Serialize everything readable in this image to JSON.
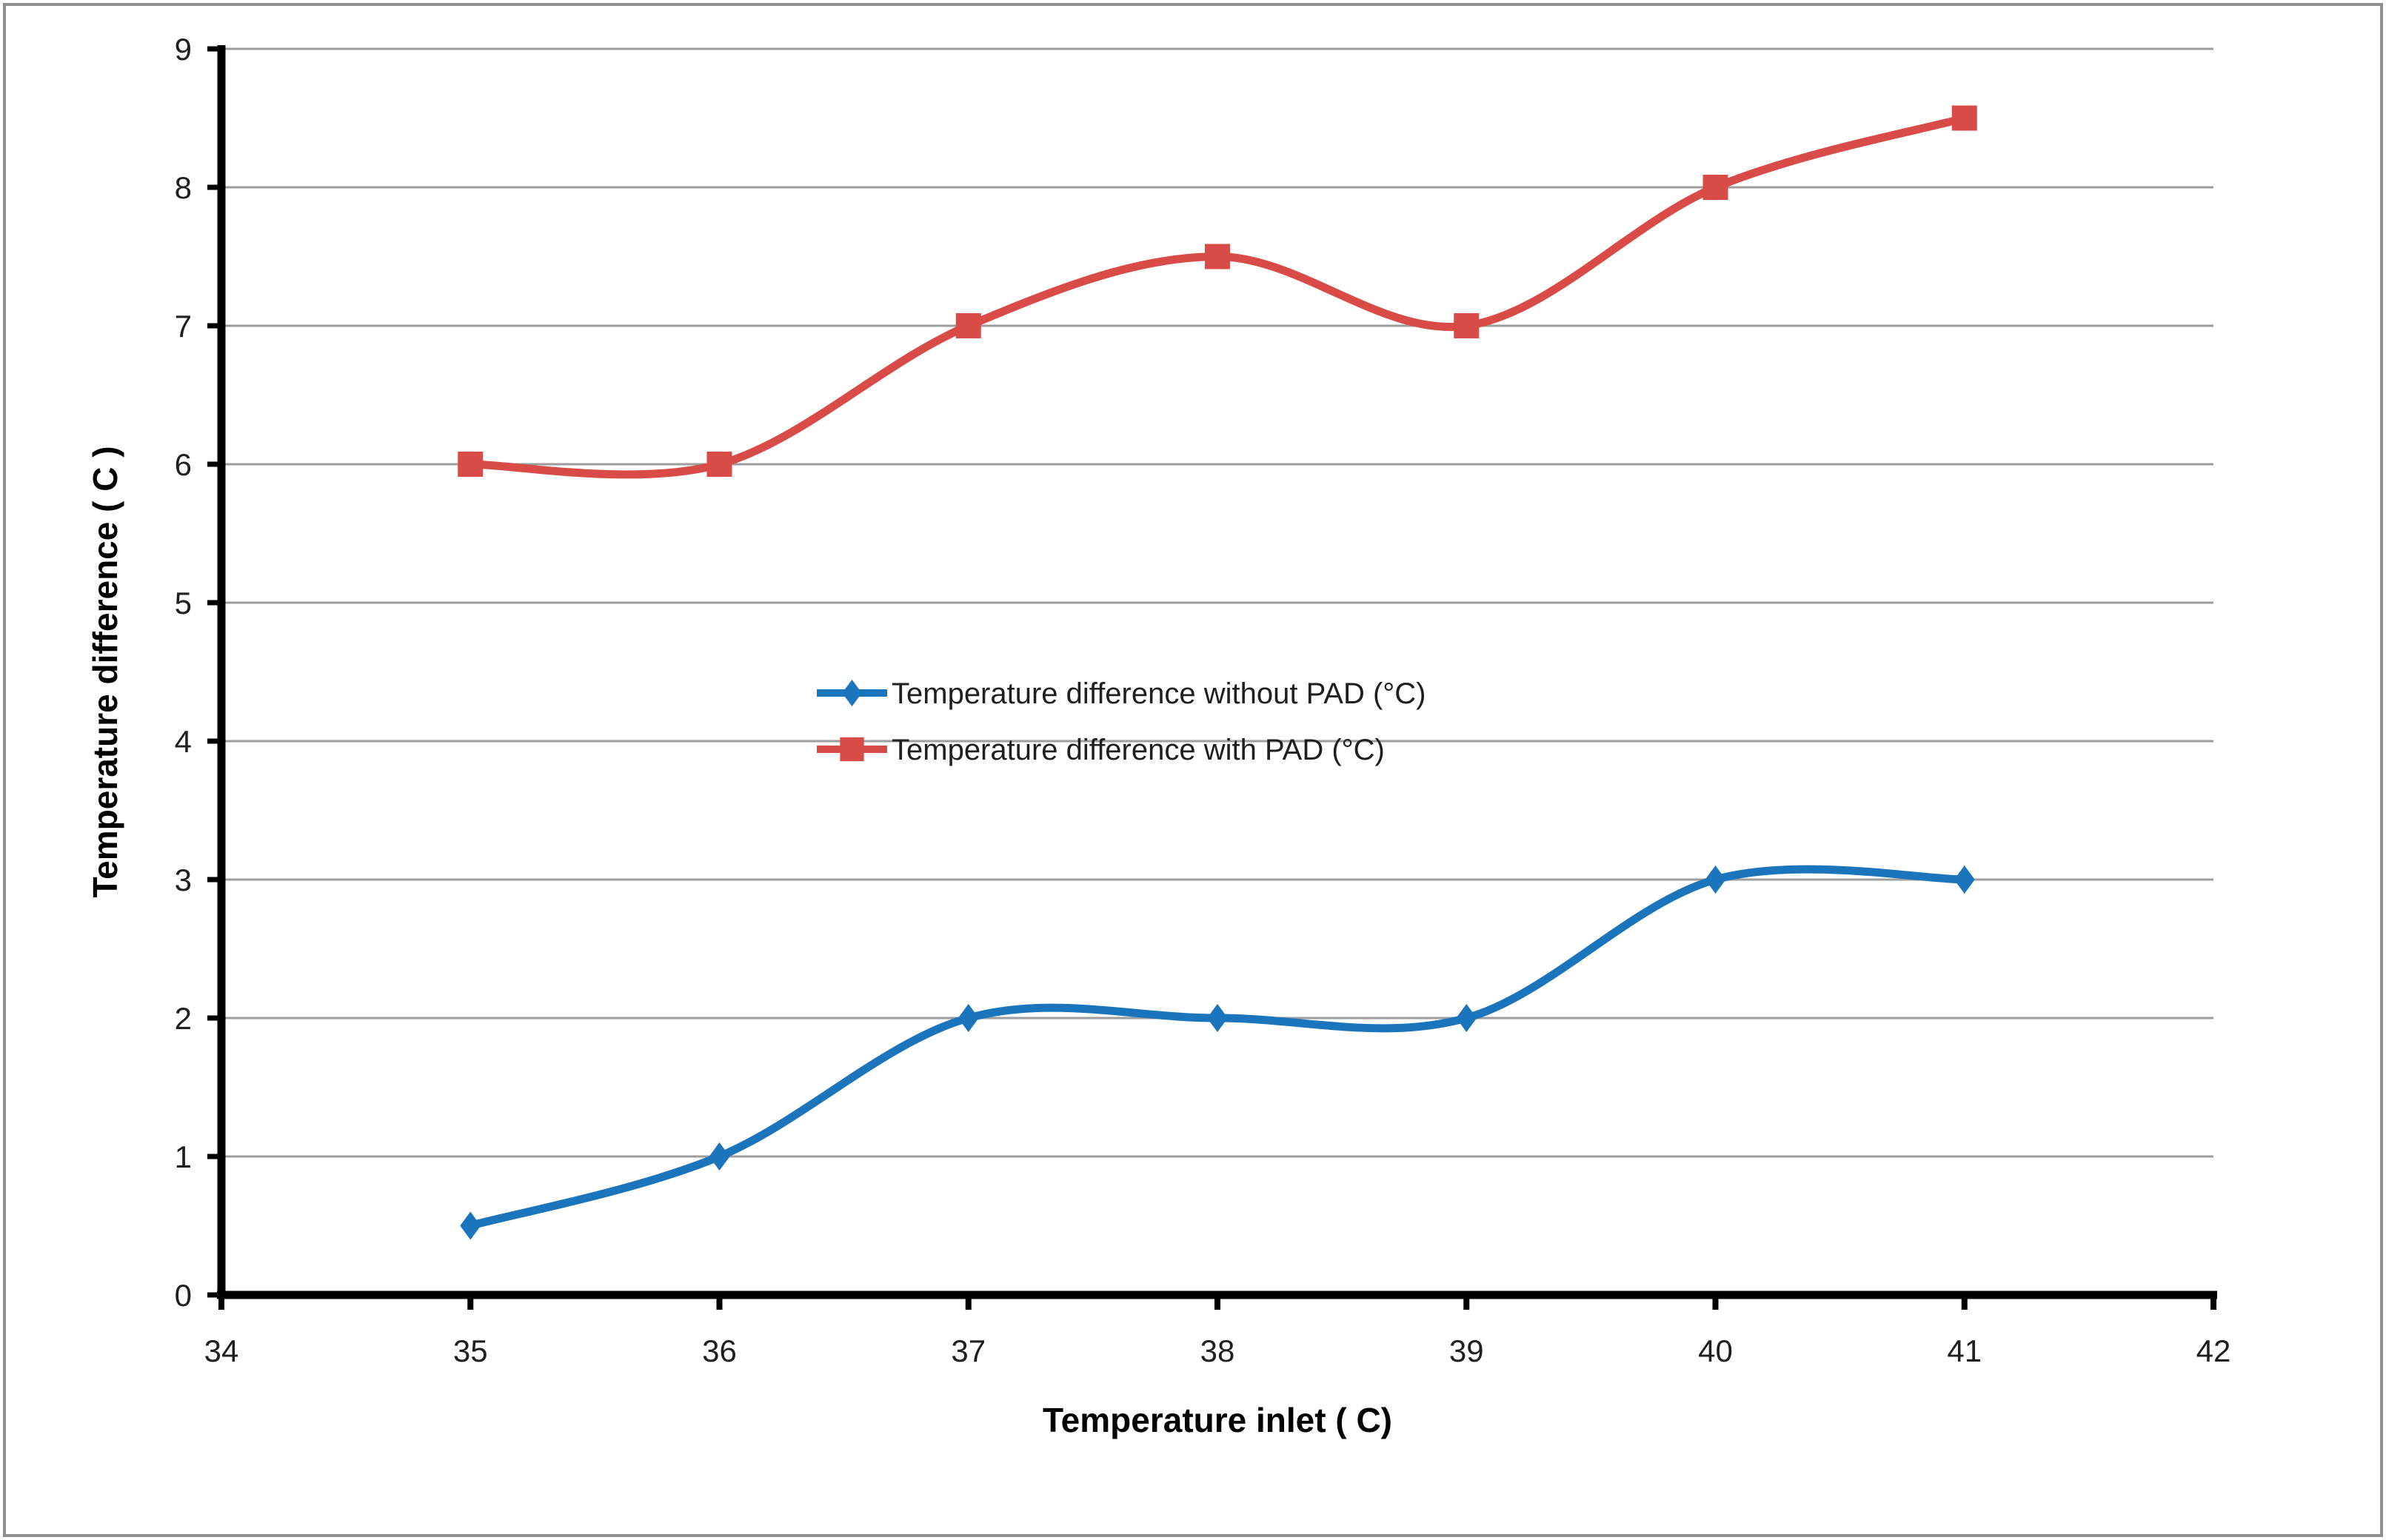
{
  "chart_data": {
    "type": "line",
    "title": "",
    "xlabel": "Temperature inlet  ( C)",
    "ylabel": "Temperature difference ( C )",
    "xlim": [
      34,
      42
    ],
    "ylim": [
      0,
      9
    ],
    "xticks": [
      34,
      35,
      36,
      37,
      38,
      39,
      40,
      41,
      42
    ],
    "yticks": [
      0,
      1,
      2,
      3,
      4,
      5,
      6,
      7,
      8,
      9
    ],
    "grid": "horizontal-only",
    "line_style": "smooth",
    "legend_position": "center-of-plot",
    "x": [
      35,
      36,
      37,
      38,
      39,
      40,
      41
    ],
    "series": [
      {
        "name": "Temperature difference without PAD (°C)",
        "values": [
          0.5,
          1,
          2,
          2,
          2,
          3,
          3
        ],
        "color": "#1B75BC",
        "marker": "diamond",
        "slug": "without-pad"
      },
      {
        "name": "Temperature difference with PAD (°C)",
        "values": [
          6,
          6,
          7,
          7.5,
          7,
          8,
          8.5
        ],
        "color": "#D94B47",
        "marker": "square",
        "slug": "with-pad"
      }
    ]
  },
  "colors": {
    "background": "#ffffff",
    "gridline": "#9d9d9d",
    "axis": "#000000",
    "tick_text": "#1f1f1f",
    "border": "#8f8f8f"
  }
}
